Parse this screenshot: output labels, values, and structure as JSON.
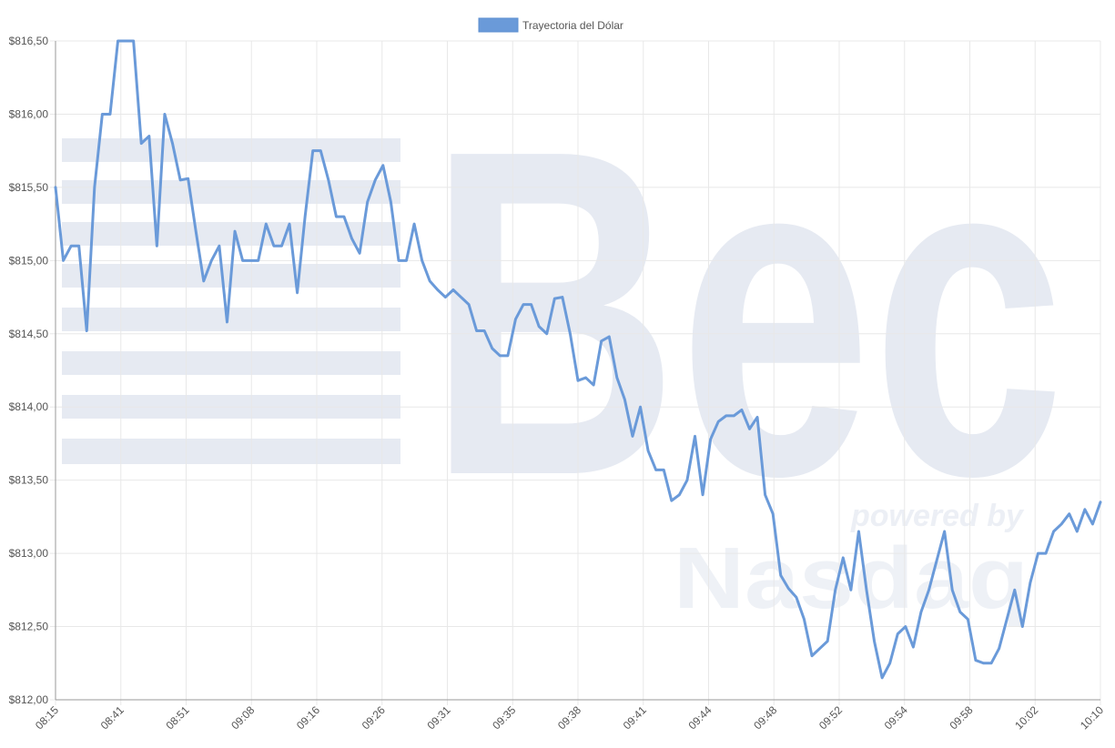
{
  "legend": {
    "label": "Trayectoria del Dólar",
    "color": "#6a9ad9"
  },
  "watermark": {
    "brand": "Bec",
    "tagline": "powered by",
    "partner": "Nasdaq",
    "color": "#e6eaf2"
  },
  "colors": {
    "line": "#6a9ad9",
    "grid": "#e8e8e8",
    "axis": "#888888",
    "text": "#555555"
  },
  "chart_data": {
    "type": "line",
    "title": "",
    "xlabel": "",
    "ylabel": "",
    "ylim": [
      812.0,
      816.5
    ],
    "yticks": [
      {
        "value": 812.0,
        "label": "$812,00"
      },
      {
        "value": 812.5,
        "label": "$812,50"
      },
      {
        "value": 813.0,
        "label": "$813,00"
      },
      {
        "value": 813.5,
        "label": "$813,50"
      },
      {
        "value": 814.0,
        "label": "$814,00"
      },
      {
        "value": 814.5,
        "label": "$814,50"
      },
      {
        "value": 815.0,
        "label": "$815,00"
      },
      {
        "value": 815.5,
        "label": "$815,50"
      },
      {
        "value": 816.0,
        "label": "$816,00"
      },
      {
        "value": 816.5,
        "label": "$816,50"
      }
    ],
    "xticks": [
      "08:15",
      "08:41",
      "08:51",
      "09:08",
      "09:16",
      "09:26",
      "09:31",
      "09:35",
      "09:38",
      "09:41",
      "09:44",
      "09:48",
      "09:52",
      "09:54",
      "09:58",
      "10:02",
      "10:10"
    ],
    "legend_position": "top-center",
    "grid": true,
    "series": [
      {
        "name": "Trayectoria del Dólar",
        "values": [
          815.5,
          815.0,
          815.1,
          815.1,
          814.52,
          815.5,
          816.0,
          816.0,
          816.5,
          816.5,
          816.5,
          815.8,
          815.85,
          815.1,
          816.0,
          815.8,
          815.55,
          815.56,
          815.2,
          814.86,
          815.0,
          815.1,
          814.58,
          815.2,
          815.0,
          815.0,
          815.0,
          815.25,
          815.1,
          815.1,
          815.25,
          814.78,
          815.3,
          815.75,
          815.75,
          815.55,
          815.3,
          815.3,
          815.15,
          815.05,
          815.4,
          815.55,
          815.65,
          815.4,
          815.0,
          815.0,
          815.25,
          815.0,
          814.86,
          814.8,
          814.75,
          814.8,
          814.75,
          814.7,
          814.52,
          814.52,
          814.4,
          814.35,
          814.35,
          814.6,
          814.7,
          814.7,
          814.55,
          814.5,
          814.74,
          814.75,
          814.5,
          814.18,
          814.2,
          814.15,
          814.45,
          814.48,
          814.2,
          814.05,
          813.8,
          814.0,
          813.7,
          813.57,
          813.57,
          813.36,
          813.4,
          813.5,
          813.8,
          813.4,
          813.78,
          813.9,
          813.94,
          813.94,
          813.98,
          813.85,
          813.93,
          813.4,
          813.27,
          812.85,
          812.76,
          812.7,
          812.55,
          812.3,
          812.35,
          812.4,
          812.75,
          812.97,
          812.75,
          813.15,
          812.75,
          812.4,
          812.15,
          812.25,
          812.45,
          812.5,
          812.36,
          812.6,
          812.75,
          812.95,
          813.15,
          812.75,
          812.6,
          812.55,
          812.27,
          812.25,
          812.25,
          812.35,
          812.55,
          812.75,
          812.5,
          812.8,
          813.0,
          813.0,
          813.15,
          813.2,
          813.27,
          813.15,
          813.3,
          813.2,
          813.35
        ]
      }
    ]
  }
}
